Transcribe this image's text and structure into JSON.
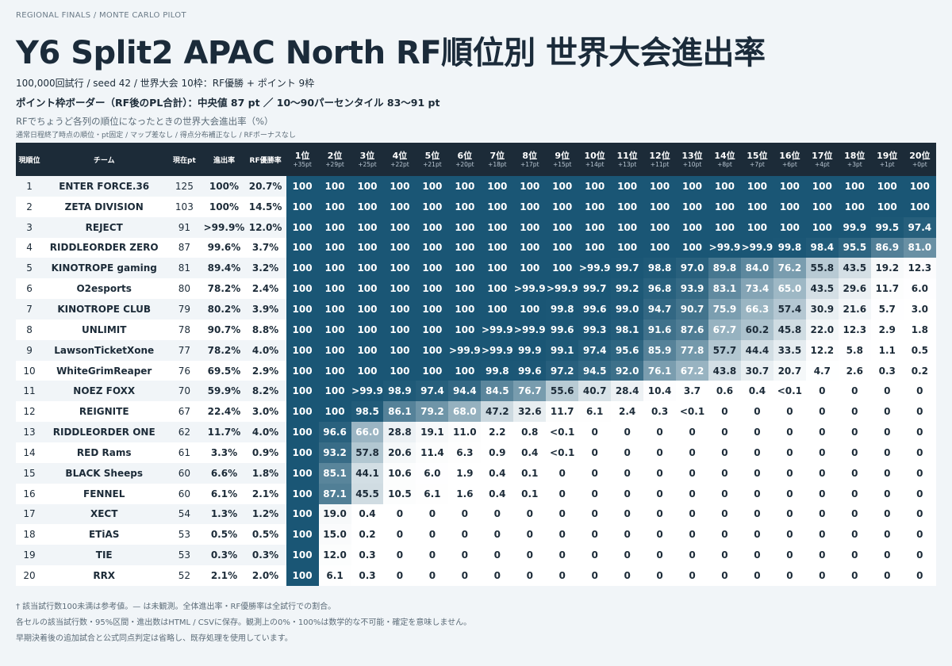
{
  "header": {
    "kicker": "REGIONAL FINALS / MONTE CARLO PILOT",
    "title": "Y6 Split2 APAC North RF順位別 世界大会進出率",
    "meta1": "100,000回試行 / seed 42 / 世界大会 10枠：RF優勝 + ポイント 9枠",
    "meta2": "ポイント枠ボーダー（RF後のPL合計）：中央値 87 pt ／ 10〜90パーセンタイル 83〜91 pt",
    "desc": "RFでちょうど各列の順位になったときの世界大会進出率（%）",
    "desc2": "通常日程終了時点の順位・pt固定 / マップ差なし / 得点分布補正なし / RFボーナスなし"
  },
  "table": {
    "headers": {
      "rank": "現順位",
      "team": "チーム",
      "pt": "現在pt",
      "pct": "進出率",
      "win": "RF優勝率"
    },
    "places": [
      {
        "label": "1位",
        "pts": "+35pt"
      },
      {
        "label": "2位",
        "pts": "+29pt"
      },
      {
        "label": "3位",
        "pts": "+25pt"
      },
      {
        "label": "4位",
        "pts": "+22pt"
      },
      {
        "label": "5位",
        "pts": "+21pt"
      },
      {
        "label": "6位",
        "pts": "+20pt"
      },
      {
        "label": "7位",
        "pts": "+18pt"
      },
      {
        "label": "8位",
        "pts": "+17pt"
      },
      {
        "label": "9位",
        "pts": "+15pt"
      },
      {
        "label": "10位",
        "pts": "+14pt"
      },
      {
        "label": "11位",
        "pts": "+13pt"
      },
      {
        "label": "12位",
        "pts": "+11pt"
      },
      {
        "label": "13位",
        "pts": "+10pt"
      },
      {
        "label": "14位",
        "pts": "+8pt"
      },
      {
        "label": "15位",
        "pts": "+7pt"
      },
      {
        "label": "16位",
        "pts": "+6pt"
      },
      {
        "label": "17位",
        "pts": "+4pt"
      },
      {
        "label": "18位",
        "pts": "+3pt"
      },
      {
        "label": "19位",
        "pts": "+1pt"
      },
      {
        "label": "20位",
        "pts": "+0pt"
      }
    ],
    "rows": [
      {
        "rank": "1",
        "team": "ENTER FORCE.36",
        "pt": "125",
        "pct": "100%",
        "win": "20.7%",
        "cells": [
          "100",
          "100",
          "100",
          "100",
          "100",
          "100",
          "100",
          "100",
          "100",
          "100",
          "100",
          "100",
          "100",
          "100",
          "100",
          "100",
          "100",
          "100",
          "100",
          "100"
        ]
      },
      {
        "rank": "2",
        "team": "ZETA DIVISION",
        "pt": "103",
        "pct": "100%",
        "win": "14.5%",
        "cells": [
          "100",
          "100",
          "100",
          "100",
          "100",
          "100",
          "100",
          "100",
          "100",
          "100",
          "100",
          "100",
          "100",
          "100",
          "100",
          "100",
          "100",
          "100",
          "100",
          "100"
        ]
      },
      {
        "rank": "3",
        "team": "REJECT",
        "pt": "91",
        "pct": ">99.9%",
        "win": "12.0%",
        "cells": [
          "100",
          "100",
          "100",
          "100",
          "100",
          "100",
          "100",
          "100",
          "100",
          "100",
          "100",
          "100",
          "100",
          "100",
          "100",
          "100",
          "100",
          "99.9",
          "99.5",
          "97.4"
        ]
      },
      {
        "rank": "4",
        "team": "RIDDLEORDER ZERO",
        "pt": "87",
        "pct": "99.6%",
        "win": "3.7%",
        "cells": [
          "100",
          "100",
          "100",
          "100",
          "100",
          "100",
          "100",
          "100",
          "100",
          "100",
          "100",
          "100",
          "100",
          ">99.9",
          ">99.9",
          "99.8",
          "98.4",
          "95.5",
          "86.9",
          "81.0"
        ]
      },
      {
        "rank": "5",
        "team": "KINOTROPE gaming",
        "pt": "81",
        "pct": "89.4%",
        "win": "3.2%",
        "cells": [
          "100",
          "100",
          "100",
          "100",
          "100",
          "100",
          "100",
          "100",
          "100",
          ">99.9",
          "99.7",
          "98.8",
          "97.0",
          "89.8",
          "84.0",
          "76.2",
          "55.8",
          "43.5",
          "19.2",
          "12.3"
        ]
      },
      {
        "rank": "6",
        "team": "O2esports",
        "pt": "80",
        "pct": "78.2%",
        "win": "2.4%",
        "cells": [
          "100",
          "100",
          "100",
          "100",
          "100",
          "100",
          "100",
          ">99.9",
          ">99.9",
          "99.7",
          "99.2",
          "96.8",
          "93.9",
          "83.1",
          "73.4",
          "65.0",
          "43.5",
          "29.6",
          "11.7",
          "6.0"
        ]
      },
      {
        "rank": "7",
        "team": "KINOTROPE CLUB",
        "pt": "79",
        "pct": "80.2%",
        "win": "3.9%",
        "cells": [
          "100",
          "100",
          "100",
          "100",
          "100",
          "100",
          "100",
          "100",
          "99.8",
          "99.6",
          "99.0",
          "94.7",
          "90.7",
          "75.9",
          "66.3",
          "57.4",
          "30.9",
          "21.6",
          "5.7",
          "3.0"
        ]
      },
      {
        "rank": "8",
        "team": "UNLIMIT",
        "pt": "78",
        "pct": "90.7%",
        "win": "8.8%",
        "cells": [
          "100",
          "100",
          "100",
          "100",
          "100",
          "100",
          ">99.9",
          ">99.9",
          "99.6",
          "99.3",
          "98.1",
          "91.6",
          "87.6",
          "67.7",
          "60.2",
          "45.8",
          "22.0",
          "12.3",
          "2.9",
          "1.8"
        ]
      },
      {
        "rank": "9",
        "team": "LawsonTicketXone",
        "pt": "77",
        "pct": "78.2%",
        "win": "4.0%",
        "cells": [
          "100",
          "100",
          "100",
          "100",
          "100",
          ">99.9",
          ">99.9",
          "99.9",
          "99.1",
          "97.4",
          "95.6",
          "85.9",
          "77.8",
          "57.7",
          "44.4",
          "33.5",
          "12.2",
          "5.8",
          "1.1",
          "0.5"
        ]
      },
      {
        "rank": "10",
        "team": "WhiteGrimReaper",
        "pt": "76",
        "pct": "69.5%",
        "win": "2.9%",
        "cells": [
          "100",
          "100",
          "100",
          "100",
          "100",
          "100",
          "99.8",
          "99.6",
          "97.2",
          "94.5",
          "92.0",
          "76.1",
          "67.2",
          "43.8",
          "30.7",
          "20.7",
          "4.7",
          "2.6",
          "0.3",
          "0.2"
        ]
      },
      {
        "rank": "11",
        "team": "NOEZ FOXX",
        "pt": "70",
        "pct": "59.9%",
        "win": "8.2%",
        "cells": [
          "100",
          "100",
          ">99.9",
          "98.9",
          "97.4",
          "94.4",
          "84.5",
          "76.7",
          "55.6",
          "40.7",
          "28.4",
          "10.4",
          "3.7",
          "0.6",
          "0.4",
          "<0.1",
          "0",
          "0",
          "0",
          "0"
        ]
      },
      {
        "rank": "12",
        "team": "REIGNITE",
        "pt": "67",
        "pct": "22.4%",
        "win": "3.0%",
        "cells": [
          "100",
          "100",
          "98.5",
          "86.1",
          "79.2",
          "68.0",
          "47.2",
          "32.6",
          "11.7",
          "6.1",
          "2.4",
          "0.3",
          "<0.1",
          "0",
          "0",
          "0",
          "0",
          "0",
          "0",
          "0"
        ]
      },
      {
        "rank": "13",
        "team": "RIDDLEORDER ONE",
        "pt": "62",
        "pct": "11.7%",
        "win": "4.0%",
        "cells": [
          "100",
          "96.6",
          "66.0",
          "28.8",
          "19.1",
          "11.0",
          "2.2",
          "0.8",
          "<0.1",
          "0",
          "0",
          "0",
          "0",
          "0",
          "0",
          "0",
          "0",
          "0",
          "0",
          "0"
        ]
      },
      {
        "rank": "14",
        "team": "RED Rams",
        "pt": "61",
        "pct": "3.3%",
        "win": "0.9%",
        "cells": [
          "100",
          "93.2",
          "57.8",
          "20.6",
          "11.4",
          "6.3",
          "0.9",
          "0.4",
          "<0.1",
          "0",
          "0",
          "0",
          "0",
          "0",
          "0",
          "0",
          "0",
          "0",
          "0",
          "0"
        ]
      },
      {
        "rank": "15",
        "team": "BLACK Sheeps",
        "pt": "60",
        "pct": "6.6%",
        "win": "1.8%",
        "cells": [
          "100",
          "85.1",
          "44.1",
          "10.6",
          "6.0",
          "1.9",
          "0.4",
          "0.1",
          "0",
          "0",
          "0",
          "0",
          "0",
          "0",
          "0",
          "0",
          "0",
          "0",
          "0",
          "0"
        ]
      },
      {
        "rank": "16",
        "team": "FENNEL",
        "pt": "60",
        "pct": "6.1%",
        "win": "2.1%",
        "cells": [
          "100",
          "87.1",
          "45.5",
          "10.5",
          "6.1",
          "1.6",
          "0.4",
          "0.1",
          "0",
          "0",
          "0",
          "0",
          "0",
          "0",
          "0",
          "0",
          "0",
          "0",
          "0",
          "0"
        ]
      },
      {
        "rank": "17",
        "team": "XECT",
        "pt": "54",
        "pct": "1.3%",
        "win": "1.2%",
        "cells": [
          "100",
          "19.0",
          "0.4",
          "0",
          "0",
          "0",
          "0",
          "0",
          "0",
          "0",
          "0",
          "0",
          "0",
          "0",
          "0",
          "0",
          "0",
          "0",
          "0",
          "0"
        ]
      },
      {
        "rank": "18",
        "team": "ETiAS",
        "pt": "53",
        "pct": "0.5%",
        "win": "0.5%",
        "cells": [
          "100",
          "15.0",
          "0.2",
          "0",
          "0",
          "0",
          "0",
          "0",
          "0",
          "0",
          "0",
          "0",
          "0",
          "0",
          "0",
          "0",
          "0",
          "0",
          "0",
          "0"
        ]
      },
      {
        "rank": "19",
        "team": "TIE",
        "pt": "53",
        "pct": "0.3%",
        "win": "0.3%",
        "cells": [
          "100",
          "12.0",
          "0.3",
          "0",
          "0",
          "0",
          "0",
          "0",
          "0",
          "0",
          "0",
          "0",
          "0",
          "0",
          "0",
          "0",
          "0",
          "0",
          "0",
          "0"
        ]
      },
      {
        "rank": "20",
        "team": "RRX",
        "pt": "52",
        "pct": "2.1%",
        "win": "2.0%",
        "cells": [
          "100",
          "6.1",
          "0.3",
          "0",
          "0",
          "0",
          "0",
          "0",
          "0",
          "0",
          "0",
          "0",
          "0",
          "0",
          "0",
          "0",
          "0",
          "0",
          "0",
          "0"
        ]
      }
    ]
  },
  "footer": {
    "note1": "† 該当試行数100未満は参考値。— は未観測。全体進出率・RF優勝率は全試行での割合。",
    "note2": "各セルの該当試行数・95%区間・進出数はHTML / CSVに保存。観測上の0%・100%は数学的な不可能・確定を意味しません。",
    "note3": "早期決着後の追加試合と公式同点判定は省略し、既存処理を使用しています。"
  },
  "colors": {
    "header_bg": "#1c2b38",
    "cell_high": "#1a5675",
    "cell_low": "#ffffff",
    "row_alt": "#ffffff",
    "page_bg": "#f1f5f8"
  }
}
